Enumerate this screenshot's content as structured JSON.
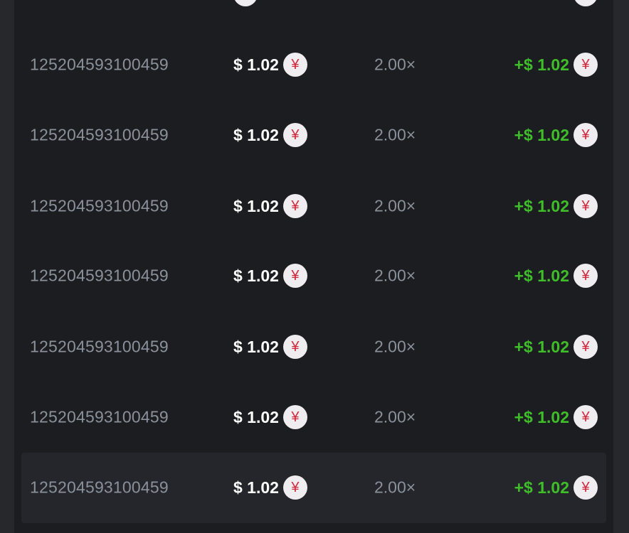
{
  "colors": {
    "profit_positive": "#3fbe2a",
    "profit_partial_row": "#e8892a",
    "coin_symbol": "#d0283d"
  },
  "currency_icon": "yen-coin-icon",
  "rows": [
    {
      "id": "125204593100459",
      "amount": "$ 1.02",
      "multiplier": "2.00×",
      "profit": "+$ 1.02",
      "coin": "¥"
    },
    {
      "id": "125204593100459",
      "amount": "$ 1.02",
      "multiplier": "2.00×",
      "profit": "+$ 1.02",
      "coin": "¥"
    },
    {
      "id": "125204593100459",
      "amount": "$ 1.02",
      "multiplier": "2.00×",
      "profit": "+$ 1.02",
      "coin": "¥"
    },
    {
      "id": "125204593100459",
      "amount": "$ 1.02",
      "multiplier": "2.00×",
      "profit": "+$ 1.02",
      "coin": "¥"
    },
    {
      "id": "125204593100459",
      "amount": "$ 1.02",
      "multiplier": "2.00×",
      "profit": "+$ 1.02",
      "coin": "¥"
    },
    {
      "id": "125204593100459",
      "amount": "$ 1.02",
      "multiplier": "2.00×",
      "profit": "+$ 1.02",
      "coin": "¥"
    },
    {
      "id": "125204593100459",
      "amount": "$ 1.02",
      "multiplier": "2.00×",
      "profit": "+$ 1.02",
      "coin": "¥"
    }
  ]
}
